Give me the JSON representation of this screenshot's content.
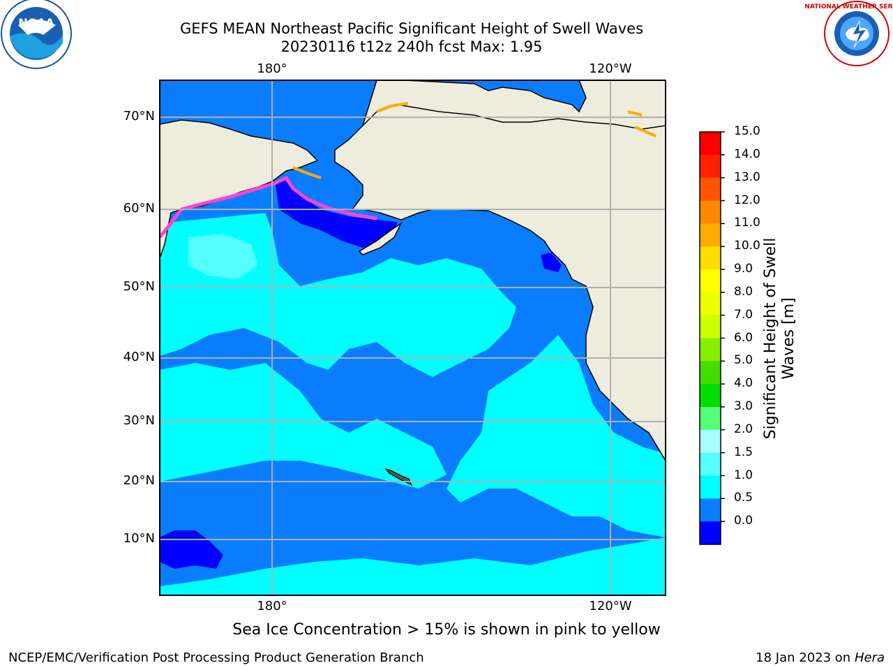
{
  "header": {
    "title_line1": "GEFS MEAN Northeast Pacific Significant Height of Swell Waves",
    "title_line2": "20230116 t12z 240h fcst   Max: 1.95"
  },
  "logos": {
    "left": {
      "name": "noaa-logo",
      "text": "NOAA"
    },
    "right": {
      "name": "nws-logo",
      "text": "NATIONAL WEATHER SERVICE"
    }
  },
  "map": {
    "lat_labels": [
      "70°N",
      "60°N",
      "50°N",
      "40°N",
      "30°N",
      "20°N",
      "10°N"
    ],
    "lon_labels_top": [
      "180°",
      "120°W"
    ],
    "lon_labels_bottom": [
      "180°",
      "120°W"
    ],
    "colors": {
      "land": "#eeeddd",
      "deep_blue": "#0000ff",
      "blue": "#0a7dff",
      "cyan": "#00ffff",
      "light_cyan": "#55ffff",
      "ice_pink": "#ff44cc",
      "ice_yellow": "#ffaa00",
      "grid": "#b0b0b0"
    }
  },
  "colorbar": {
    "title": "Significant Height of Swell Waves [m]",
    "ticks": [
      "15.0",
      "14.0",
      "13.0",
      "12.0",
      "11.0",
      "10.0",
      "9.0",
      "8.0",
      "7.0",
      "6.0",
      "5.0",
      "4.0",
      "3.0",
      "2.0",
      "1.5",
      "1.0",
      "0.5",
      "0.0"
    ],
    "colors": [
      "#ff0000",
      "#ff2200",
      "#ff5500",
      "#ff8800",
      "#ffaa00",
      "#ffdd00",
      "#ffff00",
      "#eeff00",
      "#ccff00",
      "#88ee00",
      "#44dd00",
      "#00dd00",
      "#55ff77",
      "#aaffff",
      "#55ffff",
      "#00ffff",
      "#0a7dff",
      "#0000ff"
    ]
  },
  "caption": "Sea Ice Concentration > 15% is shown in pink to yellow",
  "footer": {
    "left": "NCEP/EMC/Verification Post Processing Product Generation Branch",
    "right_date": "18 Jan 2023 on ",
    "right_machine": "Hera"
  }
}
